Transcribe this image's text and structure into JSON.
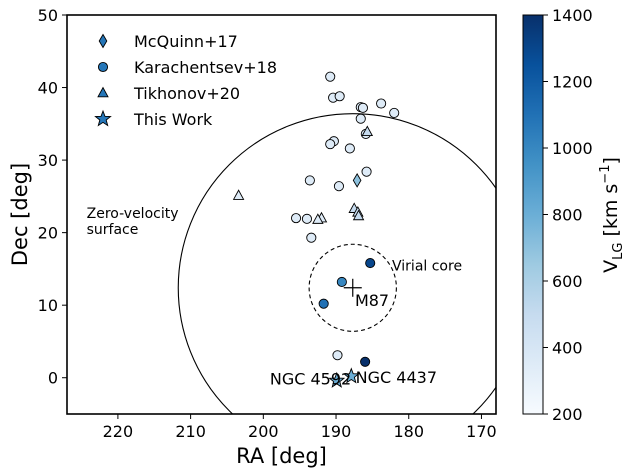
{
  "chart_data": {
    "type": "scatter",
    "xlabel": "RA [deg]",
    "ylabel": "Dec [deg]",
    "xlim": [
      227,
      168
    ],
    "ylim": [
      -5,
      50
    ],
    "x_inverted": true,
    "x_ticks": [
      220,
      210,
      200,
      190,
      180,
      170
    ],
    "y_ticks": [
      0,
      10,
      20,
      30,
      40,
      50
    ],
    "colorbar": {
      "label": "V_LG [km s^-1]",
      "label_main": "V",
      "label_sub": "LG",
      "label_unit": "[km s",
      "label_exp": "−1",
      "label_close": "]",
      "range": [
        200,
        1400
      ],
      "ticks": [
        200,
        400,
        600,
        800,
        1000,
        1200,
        1400
      ],
      "colormap": "Blues"
    },
    "legend": {
      "placement": "top-left",
      "entries": [
        {
          "label": "McQuinn+17",
          "marker": "diamond"
        },
        {
          "label": "Karachentsev+18",
          "marker": "circle"
        },
        {
          "label": "Tikhonov+20",
          "marker": "triangle"
        },
        {
          "label": "This Work",
          "marker": "star"
        }
      ]
    },
    "series": [
      {
        "name": "McQuinn+17",
        "marker": "diamond",
        "points": [
          {
            "x": 187.1,
            "y": 27.2,
            "v": 700
          }
        ]
      },
      {
        "name": "Karachentsev+18",
        "marker": "circle",
        "points": [
          {
            "x": 190.8,
            "y": 41.5,
            "v": 350
          },
          {
            "x": 190.4,
            "y": 38.6,
            "v": 350
          },
          {
            "x": 189.5,
            "y": 38.8,
            "v": 350
          },
          {
            "x": 186.6,
            "y": 37.3,
            "v": 350
          },
          {
            "x": 186.3,
            "y": 37.2,
            "v": 350
          },
          {
            "x": 183.8,
            "y": 37.8,
            "v": 350
          },
          {
            "x": 182.0,
            "y": 36.5,
            "v": 350
          },
          {
            "x": 186.6,
            "y": 35.7,
            "v": 350
          },
          {
            "x": 185.9,
            "y": 33.6,
            "v": 350
          },
          {
            "x": 190.3,
            "y": 32.6,
            "v": 350
          },
          {
            "x": 190.8,
            "y": 32.2,
            "v": 350
          },
          {
            "x": 188.1,
            "y": 31.6,
            "v": 350
          },
          {
            "x": 185.8,
            "y": 28.4,
            "v": 350
          },
          {
            "x": 189.6,
            "y": 26.4,
            "v": 350
          },
          {
            "x": 193.6,
            "y": 27.2,
            "v": 350
          },
          {
            "x": 195.5,
            "y": 22.0,
            "v": 350
          },
          {
            "x": 194.0,
            "y": 21.9,
            "v": 350
          },
          {
            "x": 193.4,
            "y": 19.3,
            "v": 350
          },
          {
            "x": 185.3,
            "y": 15.8,
            "v": 1300
          },
          {
            "x": 189.2,
            "y": 13.2,
            "v": 1000
          },
          {
            "x": 191.7,
            "y": 10.2,
            "v": 1100
          },
          {
            "x": 189.8,
            "y": 3.1,
            "v": 350
          },
          {
            "x": 186.0,
            "y": 2.2,
            "v": 1400
          }
        ]
      },
      {
        "name": "Tikhonov+20",
        "marker": "triangle",
        "points": [
          {
            "x": 185.7,
            "y": 33.9,
            "v": 500
          },
          {
            "x": 203.4,
            "y": 25.1,
            "v": 350
          },
          {
            "x": 192.0,
            "y": 22.0,
            "v": 350
          },
          {
            "x": 192.5,
            "y": 21.8,
            "v": 350
          },
          {
            "x": 187.5,
            "y": 23.3,
            "v": 500
          },
          {
            "x": 187.0,
            "y": 22.8,
            "v": 500
          },
          {
            "x": 186.9,
            "y": 22.3,
            "v": 500
          }
        ]
      },
      {
        "name": "This Work",
        "marker": "star",
        "points": [
          {
            "x": 187.9,
            "y": 0.2,
            "v": 800
          },
          {
            "x": 189.9,
            "y": -0.4,
            "v": 800
          }
        ]
      }
    ],
    "annotations": [
      {
        "text": "Zero-velocity",
        "x": 224.3,
        "y": 22.0
      },
      {
        "text": "surface",
        "x": 224.3,
        "y": 19.8
      },
      {
        "text": "Virial core",
        "x": 182.3,
        "y": 14.8
      },
      {
        "text": "M87",
        "x": 187.4,
        "y": 9.9
      },
      {
        "text": "NGC 4592",
        "x": 199.1,
        "y": -0.9
      },
      {
        "text": "NGC 4437",
        "x": 187.3,
        "y": -0.7
      }
    ],
    "m87_center": {
      "x": 187.7,
      "y": 12.4
    },
    "virial_core_radius_deg": 6.0,
    "zero_velocity_radius_deg": 24.0
  }
}
